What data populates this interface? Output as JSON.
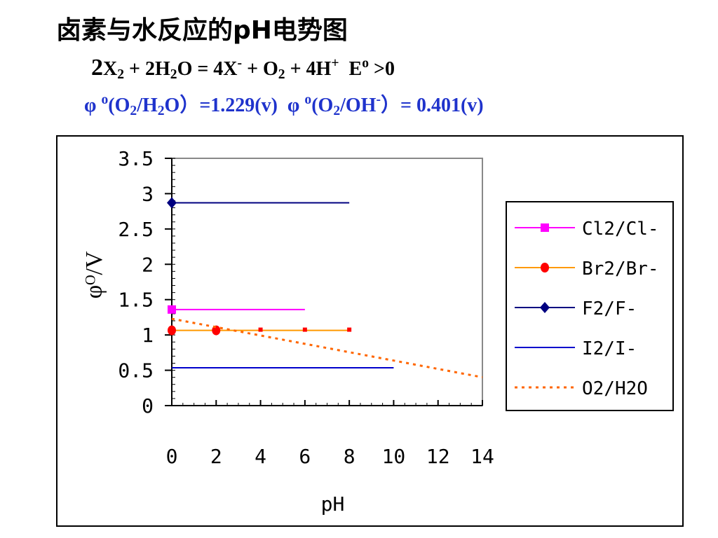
{
  "slide": {
    "title": "卤素与水反应的pH电势图",
    "reaction": {
      "coef_2": "2",
      "x": "X",
      "sub_2a": "2",
      "plus1": " + 2H",
      "sub_2b": "2",
      "o_eq": "O = 4X",
      "sup_minus": "-",
      "plus2": " + O",
      "sub_2c": "2",
      "plus3": " + 4H",
      "sup_plus": "+",
      "e": "  E",
      "sup_o": "o",
      "gt0": " >0"
    },
    "potentials": {
      "phi1": "φ ",
      "sup_o1": "o",
      "part1": "(O",
      "sub1": "2",
      "part2": "/H",
      "sub2": "2",
      "part3": "O）=1.229(v)  φ ",
      "sup_o2": "o",
      "part4": "(O",
      "sub3": "2",
      "part5": "/OH",
      "sup_minus": "-",
      "part6": "）= 0.401(v)"
    }
  },
  "chart_data": {
    "type": "line",
    "xlabel": "pH",
    "ylabel": "φᴼ/V",
    "xlim": [
      0,
      14
    ],
    "ylim": [
      0,
      3.5
    ],
    "xticks": [
      "0",
      "2",
      "4",
      "6",
      "8",
      "10",
      "12",
      "14"
    ],
    "yticks": [
      "0",
      "0.5",
      "1",
      "1.5",
      "2",
      "2.5",
      "3",
      "3.5"
    ],
    "series": [
      {
        "name": "Cl2/Cl-",
        "color": "#ff00ff",
        "marker": "square",
        "dash": false,
        "x": [
          0,
          6
        ],
        "y": [
          1.36,
          1.36
        ],
        "marker_x": [
          0
        ]
      },
      {
        "name": "Br2/Br-",
        "color": "#ff9900",
        "marker": "circle",
        "dash": false,
        "x": [
          0,
          8
        ],
        "y": [
          1.065,
          1.065
        ],
        "marker_x": [
          0,
          2,
          4,
          6,
          8
        ]
      },
      {
        "name": "F2/F-",
        "color": "#000080",
        "marker": "diamond",
        "dash": false,
        "x": [
          0,
          8
        ],
        "y": [
          2.87,
          2.87
        ],
        "marker_x": [
          0
        ]
      },
      {
        "name": "I2/I-",
        "color": "#0000cc",
        "marker": "none",
        "dash": false,
        "x": [
          0,
          10
        ],
        "y": [
          0.535,
          0.535
        ],
        "marker_x": []
      },
      {
        "name": "O2/H2O",
        "color": "#ff6600",
        "marker": "none",
        "dash": true,
        "x": [
          0,
          14
        ],
        "y": [
          1.229,
          0.401
        ],
        "marker_x": []
      }
    ],
    "legend": "right"
  }
}
